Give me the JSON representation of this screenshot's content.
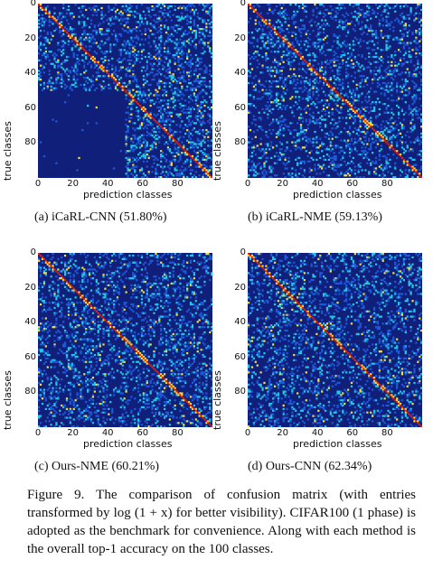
{
  "chart_data": [
    {
      "type": "heatmap",
      "subtitle": "(a) iCaRL-CNN (51.80%)",
      "xlabel": "prediction classes",
      "ylabel": "true classes",
      "xticks": [
        "0",
        "20",
        "40",
        "60",
        "80"
      ],
      "yticks": [
        "0",
        "20",
        "40",
        "60",
        "80"
      ],
      "xlim": [
        0,
        99
      ],
      "ylim": [
        0,
        99
      ],
      "colormap": [
        "#10207a",
        "#1c58d8",
        "#20c8e8",
        "#f0e040",
        "#e02010"
      ],
      "block_structure": "predictions concentrated in classes 50-99 for rows 50-99"
    },
    {
      "type": "heatmap",
      "subtitle": "(b) iCaRL-NME (59.13%)",
      "xlabel": "prediction classes",
      "ylabel": "true classes",
      "xticks": [
        "0",
        "20",
        "40",
        "60",
        "80"
      ],
      "yticks": [
        "0",
        "20",
        "40",
        "60",
        "80"
      ],
      "xlim": [
        0,
        99
      ],
      "ylim": [
        0,
        99
      ],
      "colormap": [
        "#10207a",
        "#1c58d8",
        "#20c8e8",
        "#f0e040",
        "#e02010"
      ]
    },
    {
      "type": "heatmap",
      "subtitle": "(c) Ours-NME (60.21%)",
      "xlabel": "prediction classes",
      "ylabel": "true classes",
      "xticks": [
        "0",
        "20",
        "40",
        "60",
        "80"
      ],
      "yticks": [
        "0",
        "20",
        "40",
        "60",
        "80"
      ],
      "xlim": [
        0,
        99
      ],
      "ylim": [
        0,
        99
      ],
      "colormap": [
        "#10207a",
        "#1c58d8",
        "#20c8e8",
        "#f0e040",
        "#e02010"
      ]
    },
    {
      "type": "heatmap",
      "subtitle": "(d) Ours-CNN (62.34%)",
      "xlabel": "prediction classes",
      "ylabel": "true classes",
      "xticks": [
        "0",
        "20",
        "40",
        "60",
        "80"
      ],
      "yticks": [
        "0",
        "20",
        "40",
        "60",
        "80"
      ],
      "xlim": [
        0,
        99
      ],
      "ylim": [
        0,
        99
      ],
      "colormap": [
        "#10207a",
        "#1c58d8",
        "#20c8e8",
        "#f0e040",
        "#e02010"
      ]
    }
  ],
  "caption": "Figure 9. The comparison of confusion matrix (with entries transformed by log (1 + x) for better visibility). CIFAR100 (1 phase) is adopted as the benchmark for convenience. Along with each method is the overall top-1 accuracy on the 100 classes."
}
